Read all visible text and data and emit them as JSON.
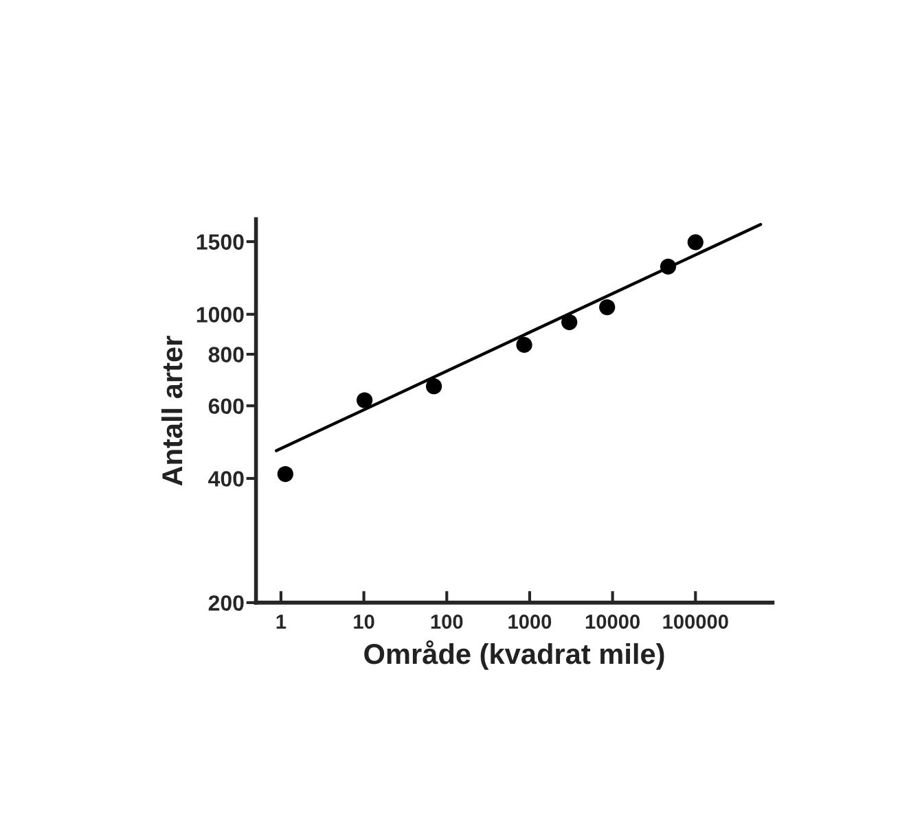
{
  "chart_data": {
    "type": "scatter",
    "xlabel": "Område (kvadrat mile)",
    "ylabel": "Antall arter",
    "log": "xy",
    "xlim": [
      0.5,
      850000
    ],
    "ylim": [
      200,
      1700
    ],
    "xticks": [
      1,
      10,
      100,
      1000,
      10000,
      100000
    ],
    "yticks": [
      200,
      400,
      600,
      800,
      1000,
      1500
    ],
    "grid": false,
    "legend": false,
    "marker": "circle",
    "series": [
      {
        "color": "#000000",
        "x": [
          1.13,
          10.2,
          70,
          860,
          3010,
          8600,
          46800,
          100000
        ],
        "values": [
          410,
          619,
          669,
          843,
          957,
          1040,
          1305,
          1495
        ]
      },
      {
        "type": "line",
        "color": "#000000",
        "line_style": "solid",
        "marker": "none",
        "x": [
          0.88,
          610000
        ],
        "values": [
          467,
          1651
        ]
      }
    ]
  }
}
